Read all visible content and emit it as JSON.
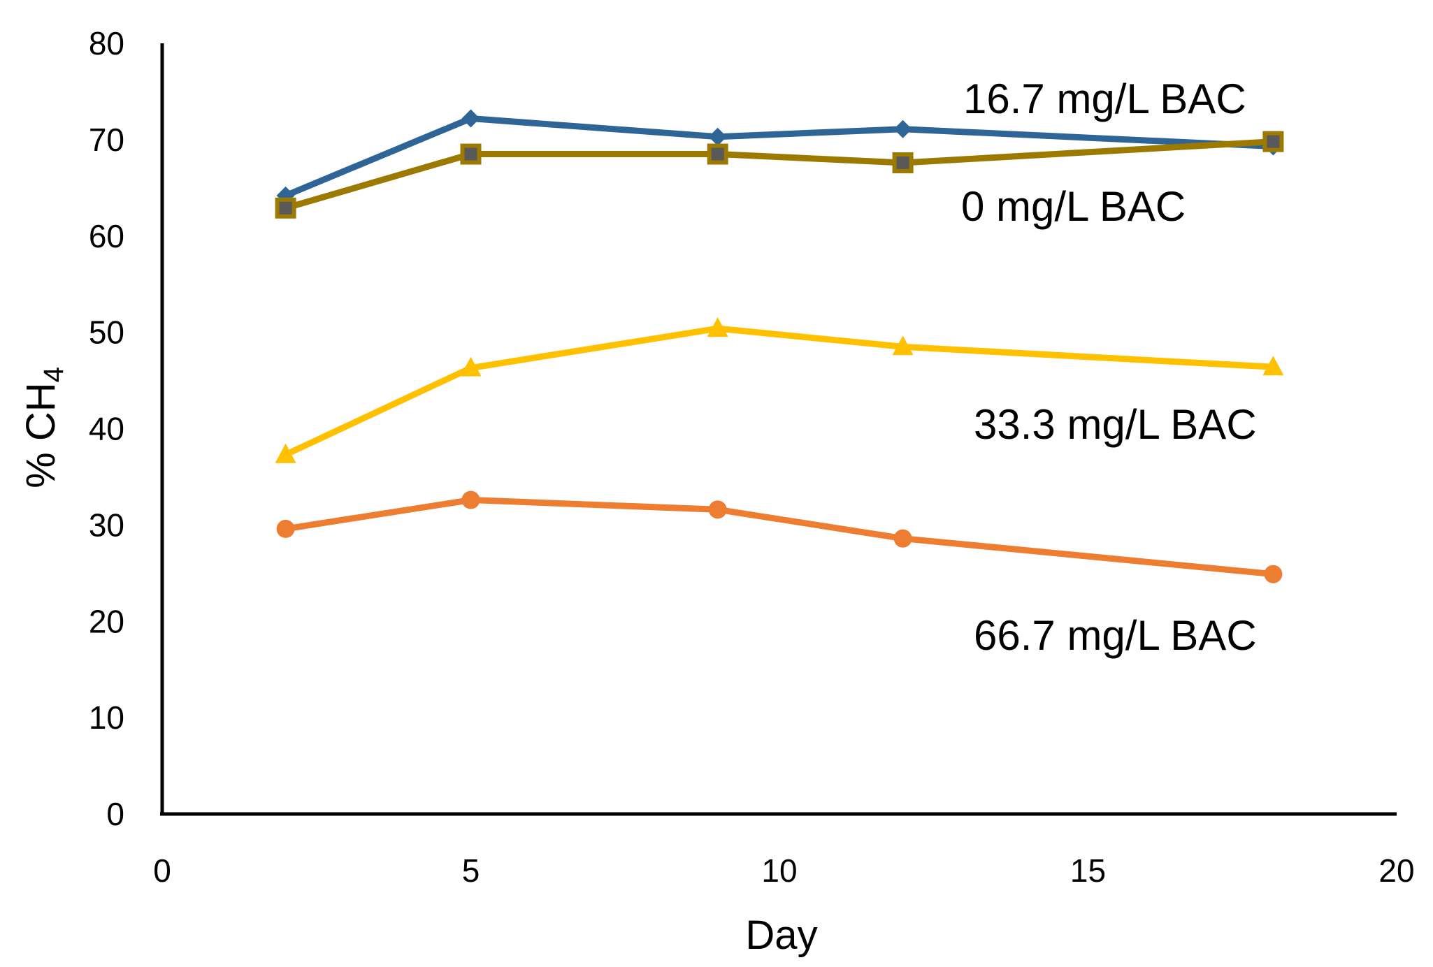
{
  "chart_data": {
    "type": "line",
    "title": "",
    "xlabel": "Day",
    "ylabel": {
      "main": "% CH",
      "sub": "4"
    },
    "xlim": [
      0,
      20
    ],
    "ylim": [
      0,
      80
    ],
    "xticks": [
      0,
      5,
      10,
      15,
      20
    ],
    "yticks": [
      0,
      10,
      20,
      30,
      40,
      50,
      60,
      70,
      80
    ],
    "grid": false,
    "legend": "none (inline series labels)",
    "x": [
      2,
      5,
      9,
      12,
      18
    ],
    "series": [
      {
        "name": "16.7 mg/L BAC",
        "color": "#2E6496",
        "marker": "diamond",
        "values": [
          64.2,
          72.2,
          70.3,
          71.1,
          69.3
        ]
      },
      {
        "name": "0 mg/L BAC",
        "color": "#9C7A00",
        "marker": "square",
        "values": [
          62.9,
          68.5,
          68.5,
          67.6,
          69.8
        ]
      },
      {
        "name": "33.3 mg/L BAC",
        "color": "#FFC000",
        "marker": "triangle",
        "values": [
          37.3,
          46.3,
          50.4,
          48.5,
          46.4
        ]
      },
      {
        "name": "66.7 mg/L BAC",
        "color": "#ED7D31",
        "marker": "circle",
        "values": [
          29.6,
          32.6,
          31.6,
          28.6,
          24.9
        ]
      }
    ],
    "annotations": [
      "16.7 mg/L BAC",
      "0 mg/L BAC",
      "33.3 mg/L BAC",
      "66.7 mg/L BAC"
    ]
  }
}
